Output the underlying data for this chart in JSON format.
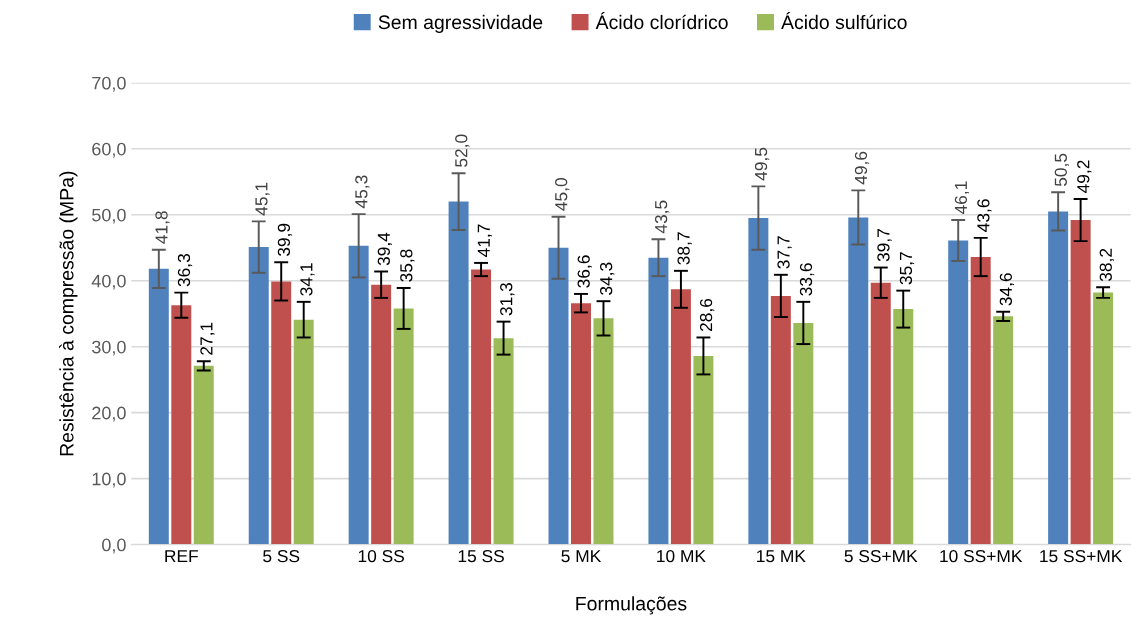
{
  "chart_data": {
    "type": "bar",
    "xlabel": "Formulações",
    "ylabel": "Resistência à compressão (MPa)",
    "categories": [
      "REF",
      "5 SS",
      "10 SS",
      "15 SS",
      "5 MK",
      "10 MK",
      "15 MK",
      "5 SS+MK",
      "10 SS+MK",
      "15 SS+MK"
    ],
    "series": [
      {
        "name": "Sem agressividade",
        "color": "#4f81bd",
        "values": [
          41.8,
          45.1,
          45.3,
          52.0,
          45.0,
          43.5,
          49.5,
          49.6,
          46.1,
          50.5
        ],
        "errors": [
          2.9,
          3.9,
          4.8,
          4.3,
          4.7,
          2.8,
          4.8,
          4.1,
          3.1,
          2.9
        ],
        "value_labels": [
          "41,8",
          "45,1",
          "45,3",
          "52,0",
          "45,0",
          "43,5",
          "49,5",
          "49,6",
          "46,1",
          "50,5"
        ]
      },
      {
        "name": "Ácido clorídrico",
        "color": "#c0504d",
        "values": [
          36.3,
          39.9,
          39.4,
          41.7,
          36.6,
          38.7,
          37.7,
          39.7,
          43.6,
          49.2
        ],
        "errors": [
          1.9,
          2.9,
          2.0,
          1.0,
          1.4,
          2.8,
          3.2,
          2.3,
          2.9,
          3.2
        ],
        "value_labels": [
          "36,3",
          "39,9",
          "39,4",
          "41,7",
          "36,6",
          "38,7",
          "37,7",
          "39,7",
          "43,6",
          "49,2"
        ]
      },
      {
        "name": "Ácido sulfúrico",
        "color": "#9bbb59",
        "values": [
          27.1,
          34.1,
          35.8,
          31.3,
          34.3,
          28.6,
          33.6,
          35.7,
          34.6,
          38.2
        ],
        "errors": [
          0.7,
          2.7,
          3.1,
          2.5,
          2.6,
          2.8,
          3.2,
          2.8,
          0.7,
          0.8
        ],
        "value_labels": [
          "27,1",
          "34,1",
          "35,8",
          "31,3",
          "34,3",
          "28,6",
          "33,6",
          "35,7",
          "34,6",
          "38,2"
        ]
      }
    ],
    "ylim": [
      0,
      70
    ],
    "yticks": [
      {
        "value": 0,
        "label": "0,0"
      },
      {
        "value": 10,
        "label": "10,0"
      },
      {
        "value": 20,
        "label": "20,0"
      },
      {
        "value": 30,
        "label": "30,0"
      },
      {
        "value": 40,
        "label": "40,0"
      },
      {
        "value": 50,
        "label": "50,0"
      },
      {
        "value": 60,
        "label": "60,0"
      },
      {
        "value": 70,
        "label": "70,0"
      }
    ],
    "grid": "y",
    "legend": "top"
  }
}
